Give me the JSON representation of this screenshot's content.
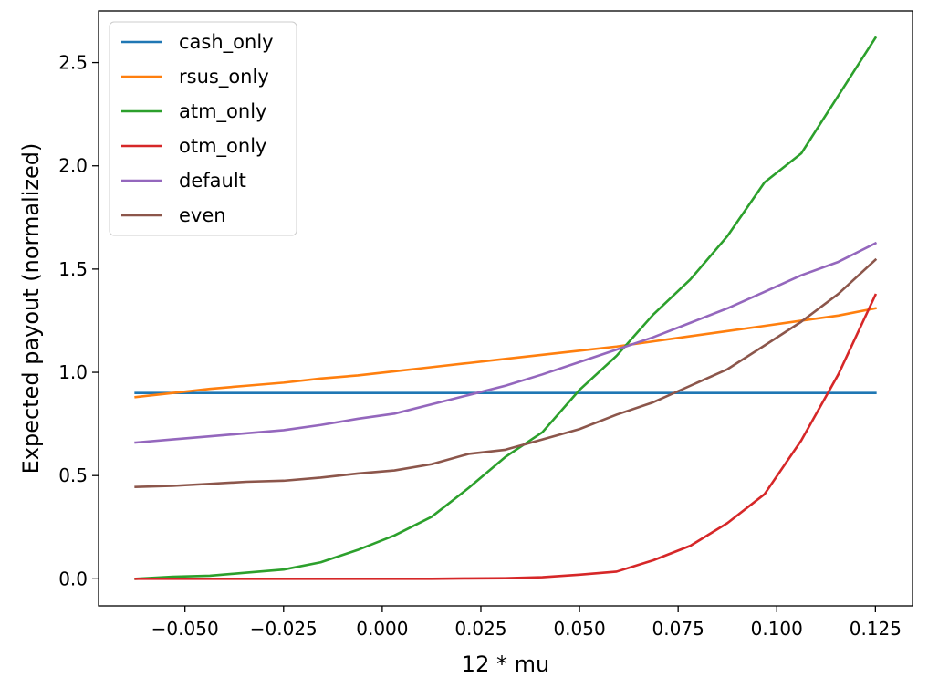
{
  "chart_data": {
    "type": "line",
    "title": "",
    "xlabel": "12 * mu",
    "ylabel": "Expected payout (normalized)",
    "xlim": [
      -0.0719,
      0.1344
    ],
    "ylim": [
      -0.131,
      2.75
    ],
    "xticks": [
      -0.05,
      -0.025,
      0.0,
      0.025,
      0.05,
      0.075,
      0.1,
      0.125
    ],
    "xtick_labels": [
      "−0.050",
      "−0.025",
      "0.000",
      "0.025",
      "0.050",
      "0.075",
      "0.100",
      "0.125"
    ],
    "yticks": [
      0.0,
      0.5,
      1.0,
      1.5,
      2.0,
      2.5
    ],
    "ytick_labels": [
      "0.0",
      "0.5",
      "1.0",
      "1.5",
      "2.0",
      "2.5"
    ],
    "grid": false,
    "legend_position": "top-left",
    "x": [
      -0.0625,
      -0.0531,
      -0.0437,
      -0.0344,
      -0.025,
      -0.0156,
      -0.0062,
      0.0031,
      0.0125,
      0.0219,
      0.0312,
      0.0406,
      0.05,
      0.0594,
      0.0687,
      0.0781,
      0.0875,
      0.0969,
      0.1062,
      0.1156,
      0.125
    ],
    "series": [
      {
        "name": "cash_only",
        "color": "#1f77b4",
        "values": [
          0.9,
          0.9,
          0.9,
          0.9,
          0.9,
          0.9,
          0.9,
          0.9,
          0.9,
          0.9,
          0.9,
          0.9,
          0.9,
          0.9,
          0.9,
          0.9,
          0.9,
          0.9,
          0.9,
          0.9,
          0.9
        ]
      },
      {
        "name": "rsus_only",
        "color": "#ff7f0e",
        "values": [
          0.88,
          0.9,
          0.92,
          0.935,
          0.95,
          0.97,
          0.985,
          1.005,
          1.025,
          1.045,
          1.065,
          1.085,
          1.105,
          1.125,
          1.15,
          1.175,
          1.2,
          1.225,
          1.25,
          1.275,
          1.31
        ]
      },
      {
        "name": "atm_only",
        "color": "#2ca02c",
        "values": [
          0.0,
          0.01,
          0.015,
          0.03,
          0.045,
          0.08,
          0.14,
          0.21,
          0.3,
          0.44,
          0.59,
          0.71,
          0.915,
          1.08,
          1.28,
          1.45,
          1.66,
          1.92,
          2.06,
          2.34,
          2.62
        ]
      },
      {
        "name": "otm_only",
        "color": "#d62728",
        "values": [
          0.0,
          0.0,
          0.0,
          0.0,
          0.0,
          0.0,
          0.0,
          0.0,
          0.0,
          0.002,
          0.003,
          0.008,
          0.02,
          0.035,
          0.09,
          0.16,
          0.27,
          0.41,
          0.67,
          0.99,
          1.375
        ]
      },
      {
        "name": "default",
        "color": "#9467bd",
        "values": [
          0.66,
          0.675,
          0.69,
          0.705,
          0.72,
          0.745,
          0.775,
          0.8,
          0.845,
          0.89,
          0.935,
          0.99,
          1.05,
          1.11,
          1.17,
          1.24,
          1.31,
          1.39,
          1.47,
          1.535,
          1.625
        ]
      },
      {
        "name": "even",
        "color": "#8c564b",
        "values": [
          0.445,
          0.45,
          0.46,
          0.47,
          0.475,
          0.49,
          0.51,
          0.525,
          0.555,
          0.605,
          0.625,
          0.675,
          0.725,
          0.795,
          0.855,
          0.935,
          1.015,
          1.13,
          1.245,
          1.38,
          1.545
        ]
      }
    ]
  }
}
